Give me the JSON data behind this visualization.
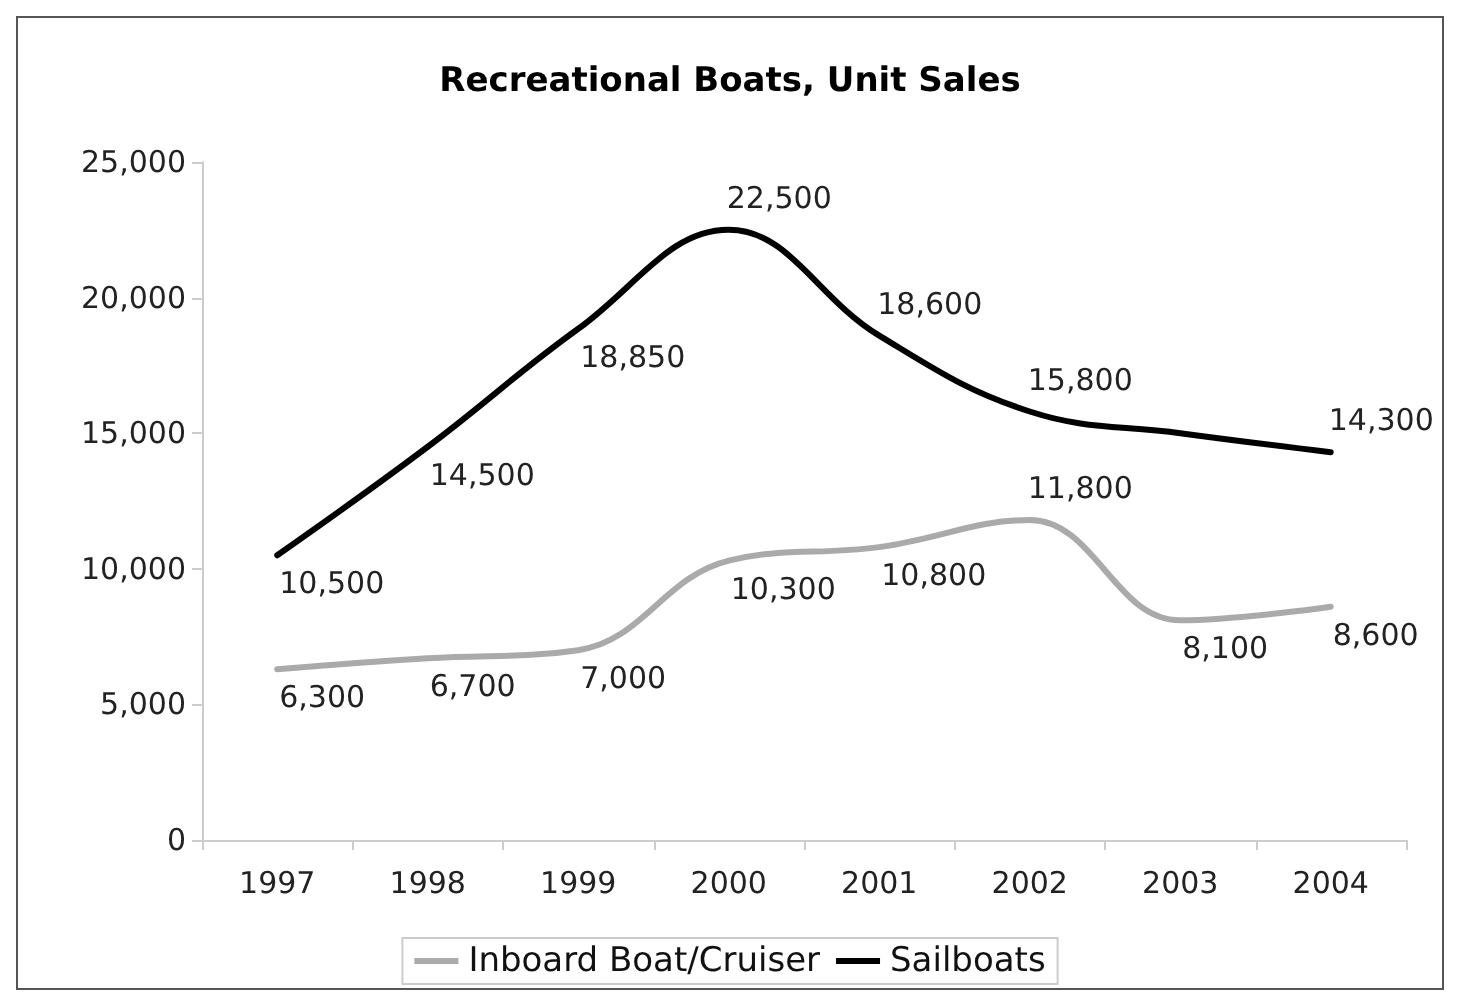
{
  "chart_data": {
    "type": "line",
    "title": "Recreational Boats, Unit Sales",
    "categories": [
      "1997",
      "1998",
      "1999",
      "2000",
      "2001",
      "2002",
      "2003",
      "2004"
    ],
    "series": [
      {
        "name": "Inboard Boat/Cruiser",
        "color": "#aaaaaa",
        "values": [
          6300,
          6700,
          7000,
          10300,
          10800,
          11800,
          8100,
          8600
        ],
        "value_labels": [
          "6,300",
          "6,700",
          "7,000",
          "10,300",
          "10,800",
          "11,800",
          "8,100",
          "8,600"
        ]
      },
      {
        "name": "Sailboats",
        "color": "#000000",
        "values": [
          10500,
          14500,
          18850,
          22500,
          18600,
          15800,
          15000,
          14300
        ],
        "value_labels": [
          "10,500",
          "14,500",
          "18,850",
          "22,500",
          "18,600",
          "15,800",
          null,
          "14,300"
        ]
      }
    ],
    "ylim": [
      0,
      25000
    ],
    "yticks": [
      0,
      {
        "value": 5000,
        "label": "5,000"
      },
      {
        "value": 10000,
        "label": "10,000"
      },
      {
        "value": 15000,
        "label": "15,000"
      },
      {
        "value": 20000,
        "label": "20,000"
      },
      {
        "value": 25000,
        "label": "25,000"
      }
    ],
    "grid": false,
    "legend": "bottom",
    "marker": "none",
    "line_style": "solid"
  }
}
